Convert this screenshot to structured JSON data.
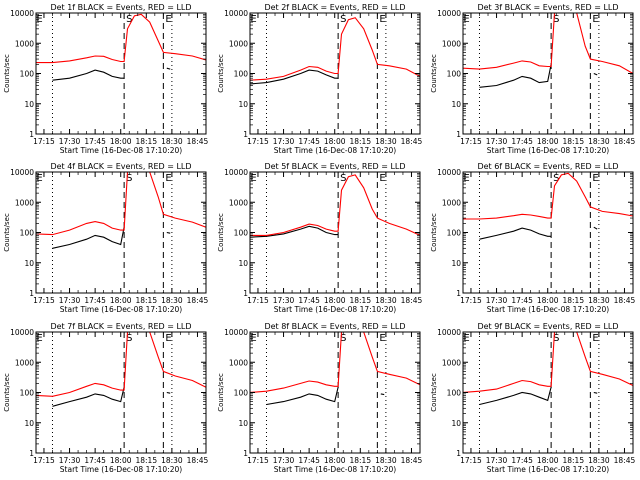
{
  "figure": {
    "ylabel": "Counts/sec",
    "xlabel": "Start Time (16-Dec-08 17:10:20)",
    "xticks": [
      "17:15",
      "17:30",
      "17:45",
      "18:00",
      "18:15",
      "18:30",
      "18:45"
    ],
    "yticks": [
      "1",
      "10",
      "100",
      "1000",
      "10000"
    ],
    "region_labels": [
      "E",
      "S",
      "E"
    ]
  },
  "colors": {
    "events": "#000000",
    "lld": "#ff0000",
    "axes": "#000000"
  },
  "chart_data": [
    {
      "type": "line",
      "title": "Det 1f BLACK = Events, RED = LLD",
      "xlabel": "Start Time (16-Dec-08 17:10:20)",
      "ylabel": "Counts/sec",
      "ylim": [
        1,
        10000
      ],
      "y_scale": "log",
      "grid": false,
      "markers": {
        "dotted": [
          "17:20",
          "18:30"
        ],
        "dashed": [
          "18:02",
          "18:25"
        ]
      },
      "series": [
        {
          "name": "Events",
          "color": "#000000",
          "x": [
            "17:20",
            "17:30",
            "17:40",
            "17:45",
            "17:50",
            "17:55",
            "18:00",
            "18:02"
          ],
          "values": [
            60,
            70,
            100,
            130,
            110,
            80,
            70,
            70
          ],
          "x_gap": [
            "18:27",
            "18:29"
          ],
          "values_gap": [
            150,
            140
          ]
        },
        {
          "name": "LLD",
          "color": "#ff0000",
          "x": [
            "17:10",
            "17:20",
            "17:30",
            "17:40",
            "17:45",
            "17:50",
            "17:55",
            "18:00",
            "18:02",
            "18:04",
            "18:08",
            "18:12",
            "18:17",
            "18:22",
            "18:25",
            "18:32",
            "18:42",
            "18:50"
          ],
          "values": [
            230,
            230,
            260,
            330,
            380,
            370,
            290,
            250,
            250,
            3000,
            8000,
            9000,
            5000,
            1200,
            500,
            450,
            380,
            280
          ]
        }
      ]
    },
    {
      "type": "line",
      "title": "Det 2f BLACK = Events, RED = LLD",
      "xlabel": "Start Time (16-Dec-08 17:10:20)",
      "ylabel": "Counts/sec",
      "ylim": [
        1,
        10000
      ],
      "y_scale": "log",
      "grid": false,
      "markers": {
        "dotted": [
          "17:20",
          "18:30"
        ],
        "dashed": [
          "18:02",
          "18:25"
        ]
      },
      "series": [
        {
          "name": "Events",
          "color": "#000000",
          "x": [
            "17:10",
            "17:20",
            "17:30",
            "17:40",
            "17:45",
            "17:50",
            "17:55",
            "18:00",
            "18:02"
          ],
          "values": [
            45,
            50,
            65,
            100,
            130,
            120,
            90,
            70,
            70
          ]
        },
        {
          "name": "LLD",
          "color": "#ff0000",
          "x": [
            "17:10",
            "17:20",
            "17:30",
            "17:40",
            "17:45",
            "17:50",
            "17:55",
            "18:00",
            "18:02",
            "18:04",
            "18:08",
            "18:12",
            "18:17",
            "18:22",
            "18:25",
            "18:32",
            "18:42",
            "18:50"
          ],
          "values": [
            60,
            65,
            80,
            130,
            170,
            160,
            120,
            100,
            100,
            2000,
            6000,
            7000,
            3000,
            600,
            200,
            180,
            140,
            80
          ]
        }
      ]
    },
    {
      "type": "line",
      "title": "Det 3f BLACK = Events, RED = LLD",
      "xlabel": "Start Time (16-Dec-08 17:10:20)",
      "ylabel": "Counts/sec",
      "ylim": [
        1,
        10000
      ],
      "y_scale": "log",
      "grid": false,
      "markers": {
        "dotted": [
          "17:20",
          "18:30"
        ],
        "dashed": [
          "18:02",
          "18:25"
        ]
      },
      "series": [
        {
          "name": "Events",
          "color": "#000000",
          "x": [
            "17:20",
            "17:30",
            "17:40",
            "17:45",
            "17:50",
            "17:55",
            "18:00",
            "18:02"
          ],
          "values": [
            35,
            40,
            60,
            80,
            70,
            50,
            55,
            200
          ],
          "x_gap": [
            "18:27",
            "18:29"
          ],
          "values_gap": [
            100,
            90
          ]
        },
        {
          "name": "LLD",
          "color": "#ff0000",
          "x": [
            "17:10",
            "17:20",
            "17:30",
            "17:40",
            "17:45",
            "17:50",
            "17:55",
            "18:00",
            "18:02",
            "18:04",
            "18:08",
            "18:12",
            "18:17",
            "18:22",
            "18:25",
            "18:32",
            "18:42",
            "18:50"
          ],
          "values": [
            150,
            140,
            160,
            220,
            260,
            240,
            180,
            170,
            170,
            10000,
            10000,
            10000,
            10000,
            800,
            300,
            250,
            180,
            100
          ]
        }
      ]
    },
    {
      "type": "line",
      "title": "Det 4f BLACK = Events, RED = LLD",
      "xlabel": "Start Time (16-Dec-08 17:10:20)",
      "ylabel": "Counts/sec",
      "ylim": [
        1,
        10000
      ],
      "y_scale": "log",
      "grid": false,
      "markers": {
        "dotted": [
          "17:20",
          "18:30"
        ],
        "dashed": [
          "18:02",
          "18:25"
        ]
      },
      "series": [
        {
          "name": "Events",
          "color": "#000000",
          "x": [
            "17:20",
            "17:30",
            "17:40",
            "17:45",
            "17:50",
            "17:55",
            "18:00",
            "18:02"
          ],
          "values": [
            30,
            40,
            60,
            80,
            70,
            50,
            40,
            150
          ],
          "x_gap": [
            "18:27",
            "18:29"
          ],
          "values_gap": [
            100,
            95
          ]
        },
        {
          "name": "LLD",
          "color": "#ff0000",
          "x": [
            "17:10",
            "17:20",
            "17:30",
            "17:40",
            "17:45",
            "17:50",
            "17:55",
            "18:00",
            "18:02",
            "18:04",
            "18:08",
            "18:12",
            "18:17",
            "18:22",
            "18:25",
            "18:32",
            "18:42",
            "18:50"
          ],
          "values": [
            90,
            85,
            120,
            200,
            230,
            200,
            140,
            120,
            120,
            10000,
            10000,
            10000,
            10000,
            1500,
            400,
            300,
            220,
            150
          ]
        }
      ]
    },
    {
      "type": "line",
      "title": "Det 5f BLACK = Events, RED = LLD",
      "xlabel": "Start Time (16-Dec-08 17:10:20)",
      "ylabel": "Counts/sec",
      "ylim": [
        1,
        10000
      ],
      "y_scale": "log",
      "grid": false,
      "markers": {
        "dotted": [
          "17:20",
          "18:30"
        ],
        "dashed": [
          "18:02",
          "18:25"
        ]
      },
      "series": [
        {
          "name": "Events",
          "color": "#000000",
          "x": [
            "17:10",
            "17:20",
            "17:30",
            "17:40",
            "17:45",
            "17:50",
            "17:55",
            "18:00",
            "18:02"
          ],
          "values": [
            70,
            75,
            90,
            130,
            160,
            140,
            100,
            85,
            85
          ]
        },
        {
          "name": "LLD",
          "color": "#ff0000",
          "x": [
            "17:10",
            "17:20",
            "17:30",
            "17:40",
            "17:45",
            "17:50",
            "17:55",
            "18:00",
            "18:02",
            "18:04",
            "18:08",
            "18:12",
            "18:17",
            "18:22",
            "18:25",
            "18:32",
            "18:42",
            "18:50"
          ],
          "values": [
            80,
            80,
            100,
            150,
            190,
            170,
            130,
            110,
            110,
            2500,
            7000,
            8000,
            3000,
            600,
            300,
            200,
            130,
            80
          ]
        }
      ]
    },
    {
      "type": "line",
      "title": "Det 6f BLACK = Events, RED = LLD",
      "xlabel": "Start Time (16-Dec-08 17:10:20)",
      "ylabel": "Counts/sec",
      "ylim": [
        1,
        10000
      ],
      "y_scale": "log",
      "grid": false,
      "markers": {
        "dotted": [
          "17:20",
          "18:30"
        ],
        "dashed": [
          "18:02",
          "18:25"
        ]
      },
      "series": [
        {
          "name": "Events",
          "color": "#000000",
          "x": [
            "17:20",
            "17:30",
            "17:40",
            "17:45",
            "17:50",
            "17:55",
            "18:00",
            "18:02"
          ],
          "values": [
            60,
            80,
            110,
            140,
            120,
            90,
            75,
            75
          ],
          "x_gap": [
            "18:27",
            "18:29"
          ],
          "values_gap": [
            150,
            130
          ]
        },
        {
          "name": "LLD",
          "color": "#ff0000",
          "x": [
            "17:10",
            "17:20",
            "17:30",
            "17:40",
            "17:45",
            "17:50",
            "17:55",
            "18:00",
            "18:02",
            "18:04",
            "18:08",
            "18:12",
            "18:17",
            "18:22",
            "18:25",
            "18:32",
            "18:42",
            "18:50"
          ],
          "values": [
            280,
            280,
            300,
            360,
            400,
            380,
            340,
            300,
            300,
            3500,
            8000,
            9000,
            5000,
            1500,
            700,
            500,
            420,
            350
          ]
        }
      ]
    },
    {
      "type": "line",
      "title": "Det 7f BLACK = Events, RED = LLD",
      "xlabel": "Start Time (16-Dec-08 17:10:20)",
      "ylabel": "Counts/sec",
      "ylim": [
        1,
        10000
      ],
      "y_scale": "log",
      "grid": false,
      "markers": {
        "dotted": [
          "17:20",
          "18:30"
        ],
        "dashed": [
          "18:02",
          "18:25"
        ]
      },
      "series": [
        {
          "name": "Events",
          "color": "#000000",
          "x": [
            "17:20",
            "17:30",
            "17:40",
            "17:45",
            "17:50",
            "17:55",
            "18:00",
            "18:02"
          ],
          "values": [
            35,
            50,
            70,
            90,
            80,
            60,
            50,
            150
          ],
          "x_gap": [
            "18:27",
            "18:29"
          ],
          "values_gap": [
            100,
            95
          ]
        },
        {
          "name": "LLD",
          "color": "#ff0000",
          "x": [
            "17:10",
            "17:20",
            "17:30",
            "17:40",
            "17:45",
            "17:50",
            "17:55",
            "18:00",
            "18:02",
            "18:04",
            "18:08",
            "18:12",
            "18:17",
            "18:22",
            "18:25",
            "18:32",
            "18:42",
            "18:50"
          ],
          "values": [
            80,
            75,
            100,
            160,
            200,
            180,
            140,
            120,
            120,
            10000,
            10000,
            10000,
            10000,
            1500,
            500,
            350,
            250,
            150
          ]
        }
      ]
    },
    {
      "type": "line",
      "title": "Det 8f BLACK = Events, RED = LLD",
      "xlabel": "Start Time (16-Dec-08 17:10:20)",
      "ylabel": "Counts/sec",
      "ylim": [
        1,
        10000
      ],
      "y_scale": "log",
      "grid": false,
      "markers": {
        "dotted": [
          "17:20",
          "18:30"
        ],
        "dashed": [
          "18:02",
          "18:25"
        ]
      },
      "series": [
        {
          "name": "Events",
          "color": "#000000",
          "x": [
            "17:20",
            "17:30",
            "17:40",
            "17:45",
            "17:50",
            "17:55",
            "18:00",
            "18:02"
          ],
          "values": [
            40,
            50,
            70,
            90,
            80,
            60,
            50,
            150
          ],
          "x_gap": [
            "18:27",
            "18:29"
          ],
          "values_gap": [
            90,
            85
          ]
        },
        {
          "name": "LLD",
          "color": "#ff0000",
          "x": [
            "17:10",
            "17:20",
            "17:30",
            "17:40",
            "17:45",
            "17:50",
            "17:55",
            "18:00",
            "18:02",
            "18:04",
            "18:08",
            "18:12",
            "18:17",
            "18:22",
            "18:25",
            "18:32",
            "18:42",
            "18:50"
          ],
          "values": [
            100,
            110,
            140,
            200,
            240,
            220,
            180,
            160,
            160,
            10000,
            10000,
            10000,
            10000,
            1500,
            500,
            400,
            300,
            180
          ]
        }
      ]
    },
    {
      "type": "line",
      "title": "Det 9f BLACK = Events, RED = LLD",
      "xlabel": "Start Time (16-Dec-08 17:10:20)",
      "ylabel": "Counts/sec",
      "ylim": [
        1,
        10000
      ],
      "y_scale": "log",
      "grid": false,
      "markers": {
        "dotted": [
          "17:20",
          "18:30"
        ],
        "dashed": [
          "18:02",
          "18:25"
        ]
      },
      "series": [
        {
          "name": "Events",
          "color": "#000000",
          "x": [
            "17:20",
            "17:30",
            "17:40",
            "17:45",
            "17:50",
            "17:55",
            "18:00",
            "18:02"
          ],
          "values": [
            40,
            55,
            80,
            100,
            90,
            70,
            55,
            150
          ],
          "x_gap": [
            "18:27",
            "18:29"
          ],
          "values_gap": [
            100,
            95
          ]
        },
        {
          "name": "LLD",
          "color": "#ff0000",
          "x": [
            "17:10",
            "17:20",
            "17:30",
            "17:40",
            "17:45",
            "17:50",
            "17:55",
            "18:00",
            "18:02",
            "18:04",
            "18:08",
            "18:12",
            "18:17",
            "18:22",
            "18:25",
            "18:32",
            "18:42",
            "18:50"
          ],
          "values": [
            100,
            110,
            130,
            200,
            250,
            230,
            180,
            160,
            160,
            10000,
            10000,
            10000,
            10000,
            1500,
            500,
            400,
            280,
            170
          ]
        }
      ]
    }
  ]
}
